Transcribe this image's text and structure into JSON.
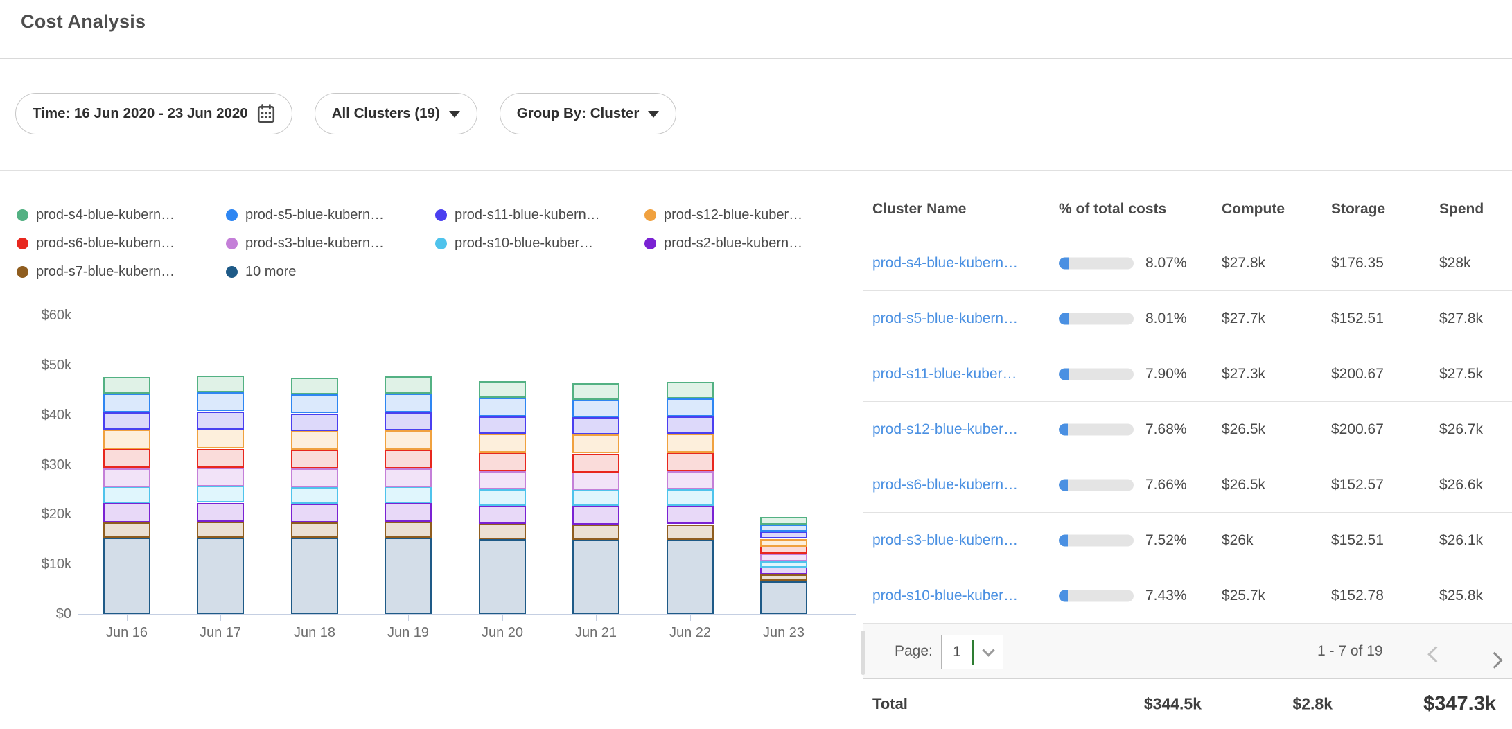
{
  "page": {
    "title": "Cost Analysis"
  },
  "filters": {
    "time": {
      "label": "Time: 16 Jun 2020 - 23 Jun 2020",
      "icon": "calendar-icon"
    },
    "clusters": {
      "label": "All Clusters (19)",
      "icon": "caret-down-icon"
    },
    "group_by": {
      "label": "Group By: Cluster",
      "icon": "caret-down-icon"
    }
  },
  "chart_data": {
    "type": "bar",
    "stacked": true,
    "title": "",
    "xlabel": "",
    "ylabel": "",
    "unit": "$k (values estimated from axis)",
    "x": [
      "Jun 16",
      "Jun 17",
      "Jun 18",
      "Jun 19",
      "Jun 20",
      "Jun 21",
      "Jun 22",
      "Jun 23"
    ],
    "y_ticks": [
      "$0",
      "$10k",
      "$20k",
      "$30k",
      "$40k",
      "$50k",
      "$60k"
    ],
    "ylim_k": [
      0,
      60
    ],
    "grid": false,
    "legend_position": "top",
    "stack_order": "reverse of series list (last series at bottom)",
    "series": [
      {
        "label": "prod-s4-blue-kubern…",
        "color": "#53b183",
        "fill": "#e0f2e7",
        "values_k": [
          3.4,
          3.4,
          3.4,
          3.5,
          3.4,
          3.3,
          3.3,
          1.6
        ]
      },
      {
        "label": "prod-s5-blue-kubern…",
        "color": "#2e86f2",
        "fill": "#dbe9fc",
        "values_k": [
          3.7,
          3.8,
          3.8,
          3.7,
          3.7,
          3.6,
          3.6,
          1.4
        ]
      },
      {
        "label": "prod-s11-blue-kubern…",
        "color": "#4a3ff0",
        "fill": "#ddd9fa",
        "values_k": [
          3.5,
          3.6,
          3.5,
          3.6,
          3.5,
          3.5,
          3.5,
          1.4
        ]
      },
      {
        "label": "prod-s12-blue-kuber…",
        "color": "#f0a13f",
        "fill": "#fdefdc",
        "values_k": [
          3.9,
          3.9,
          3.8,
          3.9,
          3.8,
          3.8,
          3.8,
          1.5
        ]
      },
      {
        "label": "prod-s6-blue-kubern…",
        "color": "#e8271e",
        "fill": "#fadcda",
        "values_k": [
          3.8,
          3.8,
          3.8,
          3.7,
          3.7,
          3.7,
          3.7,
          1.5
        ]
      },
      {
        "label": "prod-s3-blue-kubern…",
        "color": "#c47fd8",
        "fill": "#f2e3f8",
        "values_k": [
          3.7,
          3.7,
          3.7,
          3.7,
          3.6,
          3.6,
          3.6,
          1.5
        ]
      },
      {
        "label": "prod-s10-blue-kuber…",
        "color": "#4fc3ec",
        "fill": "#e0f6fd",
        "values_k": [
          3.3,
          3.4,
          3.3,
          3.3,
          3.3,
          3.2,
          3.3,
          1.2
        ]
      },
      {
        "label": "prod-s2-blue-kubern…",
        "color": "#7a22d3",
        "fill": "#e8d9f8",
        "values_k": [
          3.9,
          3.8,
          3.8,
          3.8,
          3.7,
          3.7,
          3.8,
          1.5
        ]
      },
      {
        "label": "prod-s7-blue-kubern…",
        "color": "#8f5d1f",
        "fill": "#ebe0d3",
        "values_k": [
          3.1,
          3.2,
          3.1,
          3.2,
          3.1,
          3.1,
          3.1,
          1.3
        ]
      },
      {
        "label": "10 more",
        "color": "#1e5a87",
        "fill": "#d3dde8",
        "values_k": [
          15.3,
          15.3,
          15.3,
          15.3,
          15.0,
          14.9,
          14.9,
          6.6
        ]
      }
    ]
  },
  "table": {
    "columns": [
      "Cluster Name",
      "% of total costs",
      "Compute",
      "Storage",
      "Spend"
    ],
    "rows": [
      {
        "name": "prod-s4-blue-kubern…",
        "pct": "8.07%",
        "pct_value": 8.07,
        "compute": "$27.8k",
        "storage": "$176.35",
        "spend": "$28k"
      },
      {
        "name": "prod-s5-blue-kubern…",
        "pct": "8.01%",
        "pct_value": 8.01,
        "compute": "$27.7k",
        "storage": "$152.51",
        "spend": "$27.8k"
      },
      {
        "name": "prod-s11-blue-kuber…",
        "pct": "7.90%",
        "pct_value": 7.9,
        "compute": "$27.3k",
        "storage": "$200.67",
        "spend": "$27.5k"
      },
      {
        "name": "prod-s12-blue-kuber…",
        "pct": "7.68%",
        "pct_value": 7.68,
        "compute": "$26.5k",
        "storage": "$200.67",
        "spend": "$26.7k"
      },
      {
        "name": "prod-s6-blue-kubern…",
        "pct": "7.66%",
        "pct_value": 7.66,
        "compute": "$26.5k",
        "storage": "$152.57",
        "spend": "$26.6k"
      },
      {
        "name": "prod-s3-blue-kubern…",
        "pct": "7.52%",
        "pct_value": 7.52,
        "compute": "$26k",
        "storage": "$152.51",
        "spend": "$26.1k"
      },
      {
        "name": "prod-s10-blue-kuber…",
        "pct": "7.43%",
        "pct_value": 7.43,
        "compute": "$25.7k",
        "storage": "$152.78",
        "spend": "$25.8k"
      }
    ],
    "pagination": {
      "label": "Page:",
      "page": "1",
      "range": "1 - 7 of 19"
    },
    "total": {
      "label": "Total",
      "compute": "$344.5k",
      "storage": "$2.8k",
      "spend": "$347.3k"
    }
  }
}
